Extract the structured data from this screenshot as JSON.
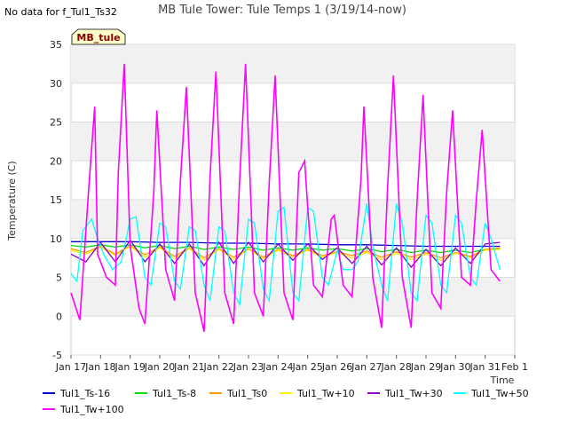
{
  "no_data_text": "No data for f_Tul1_Ts32",
  "badge": "MB_tule",
  "chart_data": {
    "type": "line",
    "title": "MB Tule Tower: Tule Temps 1 (3/19/14-now)",
    "xlabel": "Time",
    "ylabel": "Temperature (C)",
    "ylim": [
      -5,
      35
    ],
    "xlim": [
      0,
      15
    ],
    "grid": true,
    "legend_position": "bottom",
    "y_ticks": [
      -5,
      0,
      5,
      10,
      15,
      20,
      25,
      30,
      35
    ],
    "x_ticks": [
      {
        "x": 0,
        "label": "Jan 17"
      },
      {
        "x": 1,
        "label": "Jan 18"
      },
      {
        "x": 2,
        "label": "Jan 19"
      },
      {
        "x": 3,
        "label": "Jan 20"
      },
      {
        "x": 4,
        "label": "Jan 21"
      },
      {
        "x": 5,
        "label": "Jan 22"
      },
      {
        "x": 6,
        "label": "Jan 23"
      },
      {
        "x": 7,
        "label": "Jan 24"
      },
      {
        "x": 8,
        "label": "Jan 25"
      },
      {
        "x": 9,
        "label": "Jan 26"
      },
      {
        "x": 10,
        "label": "Jan 27"
      },
      {
        "x": 11,
        "label": "Jan 28"
      },
      {
        "x": 12,
        "label": "Jan 29"
      },
      {
        "x": 13,
        "label": "Jan 30"
      },
      {
        "x": 14,
        "label": "Jan 31"
      },
      {
        "x": 15,
        "label": "Feb 1"
      }
    ],
    "series": [
      {
        "name": "Tul1_Ts-16",
        "color": "#0000cc",
        "x": [
          0,
          1,
          2,
          3,
          4,
          5,
          6,
          7,
          8,
          9,
          10,
          11,
          12,
          13,
          14.5
        ],
        "y": [
          9.6,
          9.6,
          9.6,
          9.5,
          9.5,
          9.4,
          9.4,
          9.3,
          9.3,
          9.2,
          9.2,
          9.1,
          9.0,
          9.0,
          9.0
        ]
      },
      {
        "name": "Tul1_Ts-8",
        "color": "#00dd00",
        "x": [
          0,
          0.5,
          1,
          1.5,
          2,
          2.5,
          3,
          3.5,
          4,
          4.5,
          5,
          5.5,
          6,
          6.5,
          7,
          7.5,
          8,
          8.5,
          9,
          9.5,
          10,
          10.5,
          11,
          11.5,
          12,
          12.5,
          13,
          13.5,
          14,
          14.5
        ],
        "y": [
          9.1,
          8.9,
          9.2,
          8.9,
          9.2,
          8.8,
          9.1,
          8.7,
          9.0,
          8.6,
          8.9,
          8.6,
          8.9,
          8.5,
          8.8,
          8.5,
          8.8,
          8.5,
          8.7,
          8.4,
          8.7,
          8.3,
          8.6,
          8.2,
          8.5,
          8.2,
          8.5,
          8.2,
          8.6,
          8.7
        ]
      },
      {
        "name": "Tul1_Ts0",
        "color": "#ff9900",
        "x": [
          0,
          0.5,
          1,
          1.5,
          2,
          2.5,
          3,
          3.5,
          4,
          4.5,
          5,
          5.5,
          6,
          6.5,
          7,
          7.5,
          8,
          8.5,
          9,
          9.5,
          10,
          10.5,
          11,
          11.5,
          12,
          12.5,
          13,
          13.5,
          14,
          14.5
        ],
        "y": [
          8.7,
          8.2,
          9.0,
          8.0,
          9.1,
          7.9,
          8.9,
          7.7,
          8.8,
          7.5,
          8.7,
          7.6,
          8.7,
          7.6,
          8.6,
          7.8,
          8.6,
          7.8,
          8.3,
          7.8,
          8.4,
          7.6,
          8.3,
          7.6,
          8.2,
          7.5,
          8.2,
          7.7,
          8.6,
          8.8
        ]
      },
      {
        "name": "Tul1_Tw+10",
        "color": "#ffee00",
        "x": [
          0,
          0.5,
          1,
          1.5,
          2,
          2.5,
          3,
          3.5,
          4,
          4.5,
          5,
          5.5,
          6,
          6.5,
          7,
          7.5,
          8,
          8.5,
          9,
          9.5,
          10,
          10.5,
          11,
          11.5,
          12,
          12.5,
          13,
          13.5,
          14,
          14.5
        ],
        "y": [
          8.5,
          8.0,
          8.9,
          7.8,
          9.0,
          7.6,
          8.8,
          7.4,
          8.7,
          7.2,
          8.6,
          7.3,
          8.6,
          7.4,
          8.5,
          7.6,
          8.5,
          7.6,
          8.2,
          7.5,
          8.2,
          7.3,
          8.1,
          7.3,
          8.0,
          7.2,
          8.1,
          7.5,
          8.5,
          8.6
        ]
      },
      {
        "name": "Tul1_Tw+30",
        "color": "#8800cc",
        "x": [
          0,
          0.5,
          1,
          1.5,
          2,
          2.5,
          3,
          3.5,
          4,
          4.5,
          5,
          5.5,
          6,
          6.5,
          7,
          7.5,
          8,
          8.5,
          9,
          9.5,
          10,
          10.5,
          11,
          11.5,
          12,
          12.5,
          13,
          13.5,
          14,
          14.5
        ],
        "y": [
          8.0,
          7.0,
          9.5,
          7.0,
          9.8,
          7.0,
          9.3,
          6.8,
          9.3,
          6.5,
          9.5,
          6.8,
          9.5,
          7.0,
          9.3,
          7.2,
          9.3,
          7.3,
          8.8,
          6.8,
          9.0,
          6.6,
          8.8,
          6.3,
          8.6,
          6.5,
          8.8,
          6.8,
          9.3,
          9.5
        ]
      },
      {
        "name": "Tul1_Tw+50",
        "color": "#00ffff",
        "x": [
          0,
          0.2,
          0.4,
          0.7,
          0.9,
          1.1,
          1.4,
          1.7,
          2.0,
          2.2,
          2.5,
          2.7,
          3.0,
          3.2,
          3.5,
          3.7,
          4.0,
          4.2,
          4.5,
          4.7,
          5.0,
          5.2,
          5.5,
          5.7,
          6.0,
          6.2,
          6.5,
          6.7,
          7.0,
          7.2,
          7.5,
          7.7,
          8.0,
          8.2,
          8.5,
          8.7,
          9.0,
          9.2,
          9.5,
          9.7,
          10.0,
          10.2,
          10.5,
          10.7,
          11.0,
          11.2,
          11.5,
          11.7,
          12.0,
          12.2,
          12.5,
          12.7,
          13.0,
          13.2,
          13.5,
          13.7,
          14.0,
          14.2,
          14.5
        ],
        "y": [
          5.5,
          4.5,
          11.0,
          12.5,
          10.0,
          8.0,
          6.0,
          7.0,
          12.5,
          12.8,
          5.0,
          4.0,
          12.0,
          11.5,
          4.5,
          3.5,
          11.5,
          11.0,
          4.0,
          2.0,
          11.5,
          11.0,
          3.0,
          1.5,
          12.5,
          12.0,
          3.5,
          2.0,
          13.5,
          14.0,
          3.0,
          2.0,
          14.0,
          13.5,
          5.0,
          4.0,
          8.5,
          6.0,
          6.0,
          7.0,
          14.5,
          9.0,
          4.0,
          2.0,
          14.5,
          12.0,
          3.0,
          2.0,
          13.0,
          12.0,
          4.0,
          3.0,
          13.0,
          12.0,
          5.0,
          4.0,
          12.0,
          10.0,
          6.0
        ]
      },
      {
        "name": "Tul1_Tw+100",
        "color": "#ff00ff",
        "x": [
          0,
          0.3,
          0.6,
          0.8,
          0.9,
          1.2,
          1.5,
          1.6,
          1.8,
          2.0,
          2.3,
          2.5,
          2.8,
          2.9,
          3.2,
          3.5,
          3.7,
          3.9,
          4.2,
          4.5,
          4.7,
          4.9,
          5.2,
          5.5,
          5.7,
          5.9,
          6.2,
          6.5,
          6.7,
          6.9,
          7.2,
          7.5,
          7.7,
          7.9,
          8.0,
          8.2,
          8.5,
          8.8,
          8.9,
          9.2,
          9.5,
          9.8,
          9.9,
          10.2,
          10.5,
          10.7,
          10.9,
          11.2,
          11.5,
          11.7,
          11.9,
          12.2,
          12.5,
          12.7,
          12.9,
          13.2,
          13.5,
          13.7,
          13.9,
          14.2,
          14.5
        ],
        "y": [
          3.0,
          -0.5,
          16.5,
          27.0,
          8.0,
          5.0,
          4.0,
          18.5,
          32.5,
          9.0,
          1.0,
          -1.0,
          16.0,
          26.5,
          6.0,
          2.0,
          17.5,
          29.5,
          3.0,
          -2.0,
          18.0,
          31.5,
          3.0,
          -1.0,
          17.5,
          32.5,
          3.0,
          0.0,
          17.0,
          31.0,
          3.0,
          -0.5,
          18.5,
          20.0,
          14.0,
          4.0,
          2.5,
          12.5,
          13.0,
          4.0,
          2.5,
          17.5,
          27.0,
          5.0,
          -1.5,
          16.5,
          31.0,
          5.0,
          -1.5,
          15.0,
          28.5,
          3.0,
          1.0,
          16.0,
          26.5,
          5.0,
          4.0,
          15.0,
          24.0,
          6.0,
          4.5
        ]
      }
    ]
  }
}
